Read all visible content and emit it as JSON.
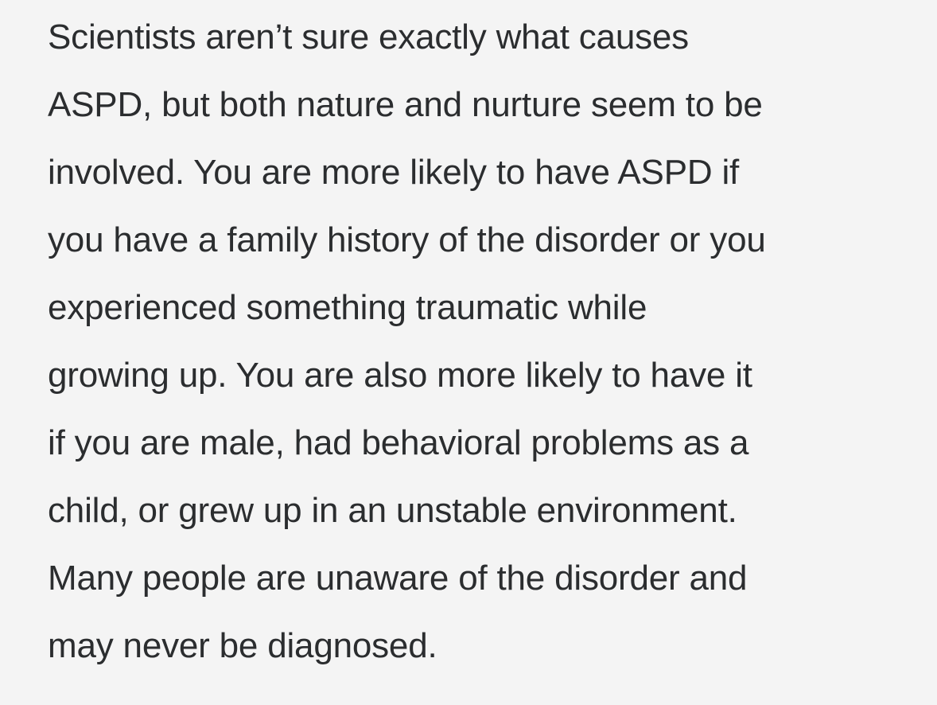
{
  "page": {
    "background_color": "#f4f4f4",
    "text_color": "#2b2d2f"
  },
  "article": {
    "paragraph": "Scientists aren’t sure exactly what causes\nASPD, but both nature and nurture seem to be\ninvolved. You are more likely to have ASPD if\nyou have a family history of the disorder or you\nexperienced something traumatic while\ngrowing up. You are also more likely to have it\nif you are male, had behavioral problems as a\nchild, or grew up in an unstable environment.\nMany people are unaware of the disorder and\nmay never be diagnosed."
  }
}
